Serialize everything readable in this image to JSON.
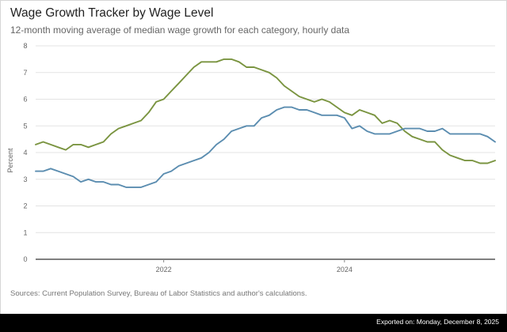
{
  "header": {
    "title": "Wage Growth Tracker by Wage Level",
    "subtitle": "12-month moving average of median wage growth for each category, hourly data"
  },
  "footer": {
    "source": "Sources: Current Population Survey, Bureau of Labor Statistics and author's calculations.",
    "exported": "Exported on: Monday, December 8, 2025"
  },
  "chart_data": {
    "type": "line",
    "title": "Wage Growth Tracker by Wage Level",
    "subtitle": "12-month moving average of median wage growth for each category, hourly data",
    "ylabel": "Percent",
    "xlabel": "",
    "ylim": [
      0,
      8
    ],
    "xlim": [
      "2020-08",
      "2025-09"
    ],
    "yticks": [
      "0",
      "1",
      "2",
      "3",
      "4",
      "5",
      "6",
      "7",
      "8"
    ],
    "xticks": [
      {
        "label": "2022",
        "at": "2022-01"
      },
      {
        "label": "2024",
        "at": "2024-01"
      }
    ],
    "grid": {
      "horizontal": true,
      "vertical": false
    },
    "legend": "none",
    "x": [
      "2020-08",
      "2020-09",
      "2020-10",
      "2020-11",
      "2020-12",
      "2021-01",
      "2021-02",
      "2021-03",
      "2021-04",
      "2021-05",
      "2021-06",
      "2021-07",
      "2021-08",
      "2021-09",
      "2021-10",
      "2021-11",
      "2021-12",
      "2022-01",
      "2022-02",
      "2022-03",
      "2022-04",
      "2022-05",
      "2022-06",
      "2022-07",
      "2022-08",
      "2022-09",
      "2022-10",
      "2022-11",
      "2022-12",
      "2023-01",
      "2023-02",
      "2023-03",
      "2023-04",
      "2023-05",
      "2023-06",
      "2023-07",
      "2023-08",
      "2023-09",
      "2023-10",
      "2023-11",
      "2023-12",
      "2024-01",
      "2024-02",
      "2024-03",
      "2024-04",
      "2024-05",
      "2024-06",
      "2024-07",
      "2024-08",
      "2024-09",
      "2024-10",
      "2024-11",
      "2024-12",
      "2025-01",
      "2025-02",
      "2025-03",
      "2025-04",
      "2025-05",
      "2025-06",
      "2025-07",
      "2025-08",
      "2025-09"
    ],
    "series": [
      {
        "color": "#7a9440",
        "values": [
          4.3,
          4.4,
          4.3,
          4.2,
          4.1,
          4.3,
          4.3,
          4.2,
          4.3,
          4.4,
          4.7,
          4.9,
          5.0,
          5.1,
          5.2,
          5.5,
          5.9,
          6.0,
          6.3,
          6.6,
          6.9,
          7.2,
          7.4,
          7.4,
          7.4,
          7.5,
          7.5,
          7.4,
          7.2,
          7.2,
          7.1,
          7.0,
          6.8,
          6.5,
          6.3,
          6.1,
          6.0,
          5.9,
          6.0,
          5.9,
          5.7,
          5.5,
          5.4,
          5.6,
          5.5,
          5.4,
          5.1,
          5.2,
          5.1,
          4.8,
          4.6,
          4.5,
          4.4,
          4.4,
          4.1,
          3.9,
          3.8,
          3.7,
          3.7,
          3.6,
          3.6,
          3.7
        ]
      },
      {
        "color": "#5b8db0",
        "values": [
          3.3,
          3.3,
          3.4,
          3.3,
          3.2,
          3.1,
          2.9,
          3.0,
          2.9,
          2.9,
          2.8,
          2.8,
          2.7,
          2.7,
          2.7,
          2.8,
          2.9,
          3.2,
          3.3,
          3.5,
          3.6,
          3.7,
          3.8,
          4.0,
          4.3,
          4.5,
          4.8,
          4.9,
          5.0,
          5.0,
          5.3,
          5.4,
          5.6,
          5.7,
          5.7,
          5.6,
          5.6,
          5.5,
          5.4,
          5.4,
          5.4,
          5.3,
          4.9,
          5.0,
          4.8,
          4.7,
          4.7,
          4.7,
          4.8,
          4.9,
          4.9,
          4.9,
          4.8,
          4.8,
          4.9,
          4.7,
          4.7,
          4.7,
          4.7,
          4.7,
          4.6,
          4.4
        ]
      }
    ]
  }
}
